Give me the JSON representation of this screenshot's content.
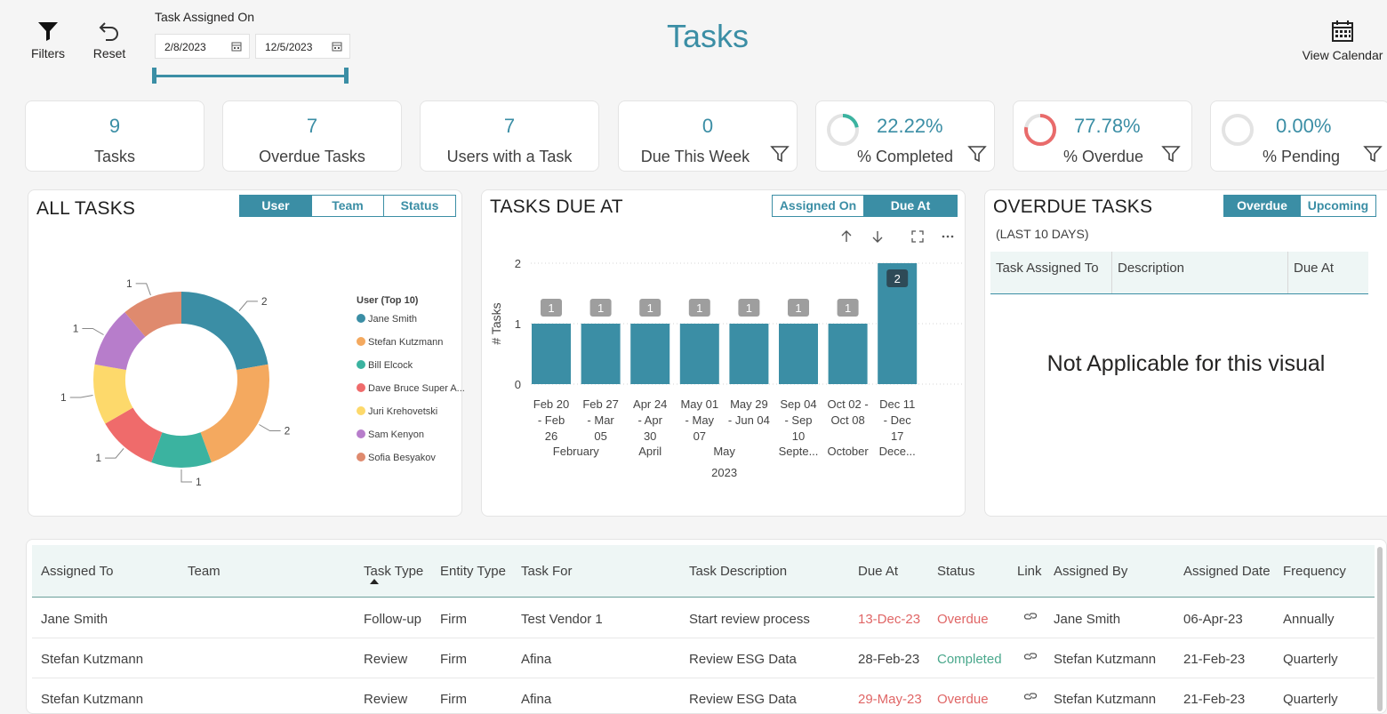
{
  "header": {
    "filters_label": "Filters",
    "reset_label": "Reset",
    "slicer_title": "Task Assigned On",
    "date_start": "2/8/2023",
    "date_end": "12/5/2023",
    "page_title": "Tasks",
    "view_calendar_label": "View Calendar"
  },
  "kpis": {
    "tasks": {
      "value": "9",
      "label": "Tasks"
    },
    "overdue": {
      "value": "7",
      "label": "Overdue Tasks"
    },
    "users": {
      "value": "7",
      "label": "Users with a Task"
    },
    "due_week": {
      "value": "0",
      "label": "Due This Week"
    },
    "pct_completed": {
      "value": "22.22%",
      "label": "% Completed",
      "fraction": 0.2222,
      "color": "#3bb3a0"
    },
    "pct_overdue": {
      "value": "77.78%",
      "label": "% Overdue",
      "fraction": 0.7778,
      "color": "#e96b6b"
    },
    "pct_pending": {
      "value": "0.00%",
      "label": "% Pending",
      "fraction": 0.0,
      "color": "#3b8ea5"
    }
  },
  "all_tasks": {
    "title": "ALL TASKS",
    "tabs": [
      "User",
      "Team",
      "Status"
    ],
    "active_tab": "User",
    "legend_title": "User (Top 10)"
  },
  "tasks_due": {
    "title": "TASKS DUE AT",
    "tabs": [
      "Assigned On",
      "Due At"
    ],
    "active_tab": "Due At"
  },
  "overdue_tasks": {
    "title": "OVERDUE TASKS",
    "subtitle": "(LAST 10 DAYS)",
    "tabs": [
      "Overdue",
      "Upcoming"
    ],
    "active_tab": "Overdue",
    "columns": [
      "Task Assigned To",
      "Description",
      "Due At"
    ],
    "empty_message": "Not Applicable for this visual"
  },
  "chart_data": [
    {
      "type": "pie",
      "variant": "donut",
      "legend_title": "User (Top 10)",
      "categories": [
        "Jane Smith",
        "Stefan Kutzmann",
        "Bill Elcock",
        "Dave Bruce Super A...",
        "Juri Krehovetski",
        "Sam Kenyon",
        "Sofia Besyakov"
      ],
      "values": [
        2,
        2,
        1,
        1,
        1,
        1,
        1
      ],
      "colors": [
        "#3b8ea5",
        "#f4a95f",
        "#3bb3a0",
        "#ef6b6b",
        "#fdd96b",
        "#b77dcb",
        "#df8a6e"
      ],
      "legend_position": "right"
    },
    {
      "type": "bar",
      "categories": [
        [
          "Feb 20",
          "- Feb",
          "26"
        ],
        [
          "Feb 27",
          "- Mar",
          "05"
        ],
        [
          "Apr 24",
          "- Apr",
          "30"
        ],
        [
          "May 01",
          "- May",
          "07"
        ],
        [
          "May 29",
          "- Jun 04",
          ""
        ],
        [
          "Sep 04",
          "- Sep",
          "10"
        ],
        [
          "Oct 02 -",
          "Oct 08",
          ""
        ],
        [
          "Dec 11",
          "- Dec",
          "17"
        ]
      ],
      "months": [
        {
          "label": "February",
          "span": [
            0,
            1
          ]
        },
        {
          "label": "April",
          "span": [
            2,
            2
          ]
        },
        {
          "label": "May",
          "span": [
            3,
            4
          ]
        },
        {
          "label": "Septe...",
          "span": [
            5,
            5
          ]
        },
        {
          "label": "October",
          "span": [
            6,
            6
          ]
        },
        {
          "label": "Dece...",
          "span": [
            7,
            7
          ]
        }
      ],
      "year": "2023",
      "values": [
        1,
        1,
        1,
        1,
        1,
        1,
        1,
        2
      ],
      "ylabel": "# Tasks",
      "ylim": [
        0,
        2
      ],
      "yticks": [
        0,
        1,
        2
      ],
      "color": "#3b8ea5",
      "grid": true
    }
  ],
  "table": {
    "columns": [
      "Assigned To",
      "Team",
      "Task Type",
      "Entity Type",
      "Task For",
      "Task Description",
      "Due At",
      "Status",
      "Link",
      "Assigned By",
      "Assigned Date",
      "Frequency"
    ],
    "rows": [
      [
        "Jane Smith",
        "",
        "Follow-up",
        "Firm",
        "Test Vendor 1",
        "Start review process",
        "13-Dec-23",
        "Overdue",
        "",
        "Jane Smith",
        "06-Apr-23",
        "Annually"
      ],
      [
        "Stefan Kutzmann",
        "",
        "Review",
        "Firm",
        "Afina",
        "Review ESG Data",
        "28-Feb-23",
        "Completed",
        "",
        "Stefan Kutzmann",
        "21-Feb-23",
        "Quarterly"
      ],
      [
        "Stefan Kutzmann",
        "",
        "Review",
        "Firm",
        "Afina",
        "Review ESG Data",
        "29-May-23",
        "Overdue",
        "",
        "Stefan Kutzmann",
        "21-Feb-23",
        "Quarterly"
      ]
    ]
  }
}
